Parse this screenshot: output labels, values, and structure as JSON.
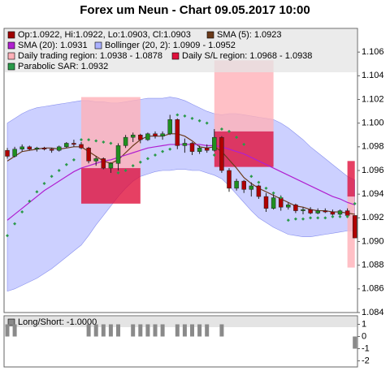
{
  "chart_data": [
    {
      "type": "candlestick",
      "title": "Forex um Neun - Chart 09.05.2017 10:00",
      "categories": [
        null,
        null,
        null,
        null,
        null,
        null,
        null,
        null,
        null,
        null,
        null,
        null,
        null,
        null,
        null,
        null,
        null,
        null,
        null,
        null,
        null,
        null,
        null,
        null,
        null,
        null,
        null,
        null,
        null,
        null,
        null,
        null,
        null,
        null,
        null,
        null,
        null,
        null,
        null,
        null,
        null,
        null,
        null,
        null,
        null,
        null,
        null,
        null
      ],
      "open": [
        1.0977,
        1.0972,
        1.0978,
        1.098,
        1.0978,
        1.0979,
        1.0978,
        1.0977,
        1.098,
        1.0983,
        1.0982,
        1.0979,
        1.0968,
        1.097,
        1.0962,
        1.0966,
        1.0981,
        1.0988,
        1.099,
        1.0986,
        1.0991,
        1.0989,
        1.0991,
        1.1003,
        1.0981,
        1.0983,
        1.0976,
        1.0979,
        1.0977,
        1.0988,
        1.096,
        1.0945,
        1.0951,
        1.0944,
        1.0947,
        1.0938,
        1.0928,
        1.0937,
        1.0929,
        1.0931,
        1.0926,
        1.0927,
        1.0924,
        1.0926,
        1.0925,
        1.0923,
        1.0926,
        1.0922
      ],
      "high": [
        1.0979,
        1.098,
        1.0982,
        1.0981,
        1.098,
        1.098,
        1.0979,
        1.0981,
        1.0984,
        1.0986,
        1.0984,
        1.098,
        1.0972,
        1.0971,
        1.0967,
        1.0983,
        1.099,
        1.0992,
        1.0991,
        1.0992,
        1.0993,
        1.0993,
        1.1007,
        1.1004,
        1.0987,
        1.0984,
        1.0981,
        1.0982,
        1.0995,
        1.0989,
        1.0962,
        1.0953,
        1.0952,
        1.095,
        1.0948,
        1.0941,
        1.094,
        1.0939,
        1.0933,
        1.0932,
        1.0929,
        1.0929,
        1.0928,
        1.0928,
        1.0927,
        1.0927,
        1.0928,
        1.0922
      ],
      "low": [
        1.097,
        1.0971,
        1.0976,
        1.0977,
        1.0976,
        1.0977,
        1.0975,
        1.0976,
        1.0979,
        1.098,
        1.0978,
        1.0966,
        1.0964,
        1.0961,
        1.0958,
        1.096,
        1.0979,
        1.0984,
        1.0983,
        1.0985,
        1.0987,
        1.0986,
        1.099,
        1.0978,
        1.0975,
        1.0973,
        1.0974,
        1.0975,
        1.0976,
        1.0958,
        1.0942,
        1.0943,
        1.0941,
        1.0938,
        1.0936,
        1.0925,
        1.0927,
        1.0926,
        1.0927,
        1.0924,
        1.0923,
        1.0923,
        1.0923,
        1.0924,
        1.0922,
        1.0922,
        1.0921,
        1.0903
      ],
      "close": [
        1.0972,
        1.0978,
        1.098,
        1.0978,
        1.0979,
        1.0978,
        1.0977,
        1.098,
        1.0983,
        1.0982,
        1.0979,
        1.0968,
        1.097,
        1.0962,
        1.0966,
        1.0981,
        1.0988,
        1.099,
        1.0986,
        1.0991,
        1.0989,
        1.0991,
        1.1003,
        1.0981,
        1.0983,
        1.0976,
        1.0979,
        1.0977,
        1.0988,
        1.096,
        1.0945,
        1.0951,
        1.0944,
        1.0947,
        1.0938,
        1.0928,
        1.0937,
        1.0929,
        1.0931,
        1.0926,
        1.0927,
        1.0924,
        1.0926,
        1.0925,
        1.0923,
        1.0926,
        1.0922,
        1.0903
      ],
      "up_color": "#1f8f1f",
      "down_color": "#b00000",
      "ohlc_legend": {
        "label": "Op:1.0922, Hi:1.0922, Lo:1.0903, Cl:1.0903",
        "color": "#a00000"
      },
      "overlays": [
        {
          "type": "line",
          "label": "SMA (5): 1.0923",
          "color": "#6b3a1a",
          "values": [
            1.0968,
            1.0972,
            1.0976,
            1.0977,
            1.0978,
            1.0979,
            1.0979,
            1.0978,
            1.0979,
            1.098,
            1.098,
            1.0976,
            1.0972,
            1.0968,
            1.0966,
            1.0969,
            1.0975,
            1.0981,
            1.0986,
            1.0989,
            1.0989,
            1.0989,
            1.0991,
            1.0991,
            1.0989,
            1.0985,
            1.098,
            1.0979,
            1.098,
            1.0976,
            1.0969,
            1.0962,
            1.0954,
            1.0949,
            1.0945,
            1.0942,
            1.0939,
            1.0936,
            1.0933,
            1.093,
            1.0929,
            1.0927,
            1.0926,
            1.0926,
            1.0925,
            1.0925,
            1.0924,
            1.0923
          ]
        },
        {
          "type": "line",
          "label": "SMA (20): 1.0931",
          "color": "#b020d0",
          "values": [
            1.0918,
            1.0923,
            1.0928,
            1.0933,
            1.0938,
            1.0943,
            1.0947,
            1.0951,
            1.0955,
            1.0959,
            1.0962,
            1.0964,
            1.0966,
            1.0968,
            1.0969,
            1.0971,
            1.0973,
            1.0975,
            1.0977,
            1.0979,
            1.098,
            1.0981,
            1.0982,
            1.0982,
            1.0982,
            1.0982,
            1.0982,
            1.0981,
            1.0981,
            1.098,
            1.0978,
            1.0976,
            1.0974,
            1.0971,
            1.0968,
            1.0965,
            1.0962,
            1.0959,
            1.0956,
            1.0953,
            1.095,
            1.0947,
            1.0944,
            1.0941,
            1.0938,
            1.0936,
            1.0933,
            1.0931
          ]
        },
        {
          "type": "band",
          "label": "Bollinger (20, 2): 1.0909 - 1.0952",
          "color": "#aab0ff",
          "upper": [
            1.1,
            1.1004,
            1.1008,
            1.1011,
            1.1013,
            1.1014,
            1.1015,
            1.1016,
            1.1017,
            1.1018,
            1.1019,
            1.1019,
            1.1018,
            1.1018,
            1.1017,
            1.1017,
            1.1018,
            1.1019,
            1.102,
            1.1021,
            1.1021,
            1.1021,
            1.1022,
            1.1021,
            1.1019,
            1.1016,
            1.1013,
            1.101,
            1.1008,
            1.1007,
            1.1008,
            1.1008,
            1.1007,
            1.1006,
            1.1005,
            1.1004,
            1.1003,
            1.1,
            1.0996,
            1.0991,
            1.0986,
            1.098,
            1.0975,
            1.097,
            1.0965,
            1.096,
            1.0955,
            1.0952
          ],
          "lower": [
            1.0858,
            1.086,
            1.0863,
            1.0866,
            1.0869,
            1.0873,
            1.0877,
            1.0882,
            1.0887,
            1.0892,
            1.0897,
            1.0905,
            1.0914,
            1.0922,
            1.093,
            1.0938,
            1.0945,
            1.0951,
            1.0955,
            1.0957,
            1.0959,
            1.096,
            1.096,
            1.0961,
            1.0961,
            1.096,
            1.096,
            1.0958,
            1.0956,
            1.0953,
            1.0947,
            1.094,
            1.0933,
            1.0926,
            1.092,
            1.0916,
            1.0912,
            1.0909,
            1.0906,
            1.0905,
            1.0904,
            1.0904,
            1.0905,
            1.0906,
            1.0907,
            1.0908,
            1.0909,
            1.0909
          ]
        },
        {
          "type": "region",
          "label": "Daily trading region: 1.0938 - 1.0878",
          "color": "#ffb0b8",
          "spans": [
            {
              "from": 10,
              "to": 18,
              "high": 1.1022,
              "low": 1.0962
            },
            {
              "from": 28,
              "to": 36,
              "high": 1.1053,
              "low": 1.0993
            },
            {
              "from": 46,
              "to": 47,
              "high": 1.0938,
              "low": 1.0878
            }
          ]
        },
        {
          "type": "region",
          "label": "Daily S/L region: 1.0968 - 1.0938",
          "color": "#e0103c",
          "spans": [
            {
              "from": 10,
              "to": 18,
              "high": 1.0962,
              "low": 1.0932
            },
            {
              "from": 28,
              "to": 36,
              "high": 1.0993,
              "low": 1.0963
            },
            {
              "from": 46,
              "to": 47,
              "high": 1.0968,
              "low": 1.0938
            }
          ]
        },
        {
          "type": "dots",
          "label": "Parabolic SAR: 1.0932",
          "color": "#2a9a4a",
          "values": [
            1.0905,
            1.0915,
            1.0925,
            1.0934,
            1.0942,
            1.0949,
            1.0955,
            1.096,
            1.0965,
            1.0969,
            1.0986,
            1.0986,
            1.0985,
            1.0984,
            1.0983,
            1.0958,
            1.096,
            1.0964,
            1.0967,
            1.097,
            1.0973,
            1.0976,
            1.0978,
            1.1007,
            1.1006,
            1.1004,
            1.1002,
            1.1,
            1.0973,
            1.0995,
            1.0993,
            1.0988,
            1.0982,
            1.0955,
            1.095,
            1.0945,
            1.0941,
            1.0937,
            1.0918,
            1.0919,
            1.0919,
            1.092,
            1.092,
            1.092,
            1.0921,
            1.0921,
            1.0921,
            1.0932
          ]
        }
      ],
      "ylim": [
        1.084,
        1.108
      ],
      "yticks": [
        1.084,
        1.086,
        1.088,
        {
          "value": 1.09,
          "label": "1.090"
        },
        1.092,
        1.094,
        1.096,
        1.098,
        {
          "value": 1.1,
          "label": "1.100"
        },
        1.102,
        1.104,
        1.106
      ]
    },
    {
      "type": "bar",
      "label": "Long/Short: -1.0000",
      "color": "#8a8a8a",
      "values": [
        1,
        1,
        0,
        0,
        0,
        0,
        0,
        0,
        0,
        0,
        0,
        1,
        1,
        1,
        1,
        1,
        0,
        1,
        1,
        1,
        1,
        1,
        0,
        1,
        1,
        1,
        1,
        1,
        0,
        1,
        0,
        0,
        0,
        0,
        0,
        0,
        0,
        0,
        0,
        0,
        0,
        0,
        0,
        0,
        0,
        0,
        0,
        -1
      ],
      "ylim": [
        -2.5,
        1.7
      ],
      "yticks": [
        1,
        0,
        -1,
        -2
      ]
    }
  ]
}
